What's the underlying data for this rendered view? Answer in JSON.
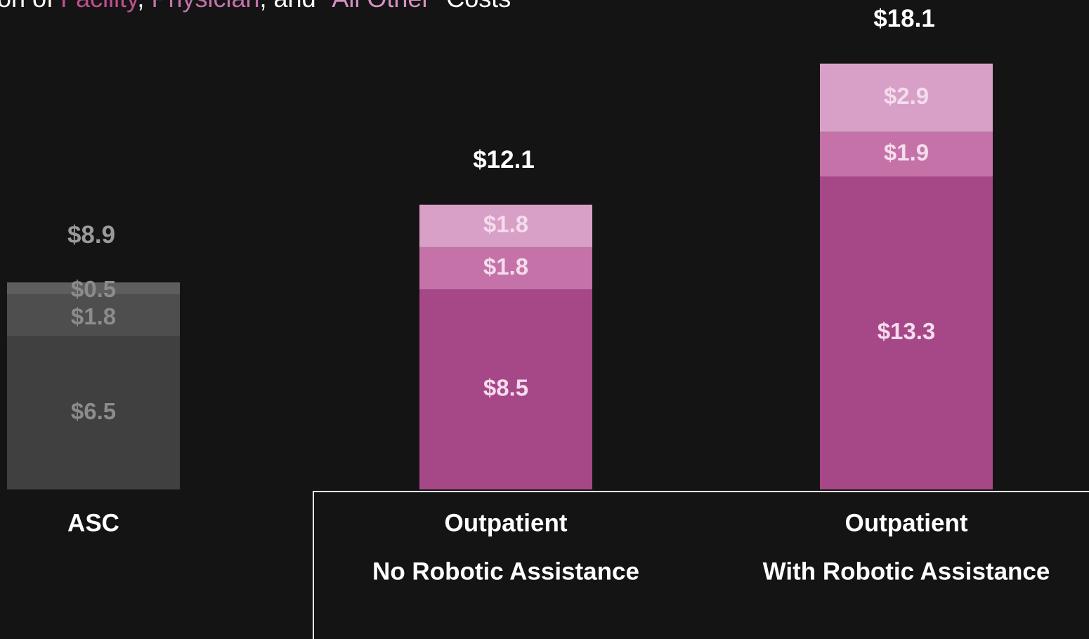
{
  "chart_data": {
    "type": "stacked_bar",
    "title_parts": [
      "on of ",
      ", ",
      ", and \"",
      "\" Costs"
    ],
    "categories": [
      [
        "ASC"
      ],
      [
        "Outpatient",
        "No Robotic Assistance"
      ],
      [
        "Outpatient",
        "With Robotic Assistance"
      ]
    ],
    "series": [
      {
        "name": "Facility",
        "color": "#a64788",
        "colors": [
          "#404040",
          "#a64788",
          "#a64788"
        ],
        "values": [
          6.5,
          8.5,
          13.3
        ],
        "value_labels": [
          "$6.5",
          "$8.5",
          "$13.3"
        ]
      },
      {
        "name": "Physician",
        "color": "#c472a8",
        "colors": [
          "#4e4e4e",
          "#c472a8",
          "#c472a8"
        ],
        "values": [
          1.8,
          1.8,
          1.9
        ],
        "value_labels": [
          "$1.8",
          "$1.8",
          "$1.9"
        ]
      },
      {
        "name": "All Other",
        "color": "#d8a0c6",
        "colors": [
          "#5e5e5e",
          "#d8a0c6",
          "#d8a0c6"
        ],
        "values": [
          0.5,
          1.8,
          2.9
        ],
        "value_labels": [
          "$0.5",
          "$1.8",
          "$2.9"
        ]
      }
    ],
    "totals": {
      "values": [
        8.9,
        12.1,
        18.1
      ],
      "value_labels": [
        "$8.9",
        "$12.1",
        "$18.1"
      ]
    },
    "ylim": [
      0,
      20
    ]
  }
}
